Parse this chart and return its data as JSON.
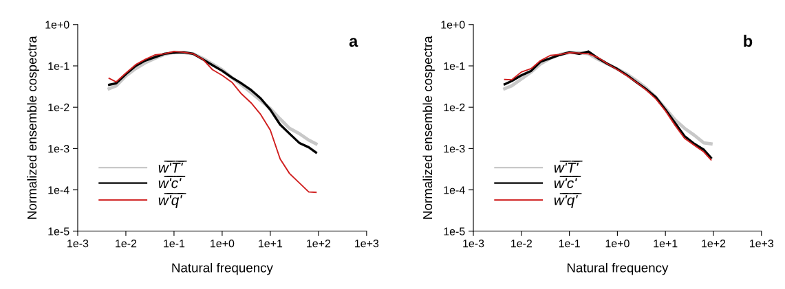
{
  "chart_data": [
    {
      "type": "line",
      "xlabel": "Natural frequency",
      "ylabel": "Normalized ensemble cospectra",
      "annotations": [
        "a"
      ],
      "log": "xy",
      "grid": false,
      "legend": "bottom left",
      "marker": "none",
      "line_style": "solid",
      "xlim": [
        0.001,
        1000
      ],
      "ylim": [
        1e-05,
        1
      ],
      "xticks": [
        {
          "value": 0.001,
          "label": "1e-3"
        },
        {
          "value": 0.01,
          "label": "1e-2"
        },
        {
          "value": 0.1,
          "label": "1e-1"
        },
        {
          "value": 1,
          "label": "1e+0"
        },
        {
          "value": 10,
          "label": "1e+1"
        },
        {
          "value": 100,
          "label": "1e+2"
        },
        {
          "value": 1000,
          "label": "1e+3"
        }
      ],
      "yticks": [
        {
          "value": 1e-05,
          "label": "1e-5"
        },
        {
          "value": 0.0001,
          "label": "1e-4"
        },
        {
          "value": 0.001,
          "label": "1e-3"
        },
        {
          "value": 0.01,
          "label": "1e-2"
        },
        {
          "value": 0.1,
          "label": "1e-1"
        },
        {
          "value": 1,
          "label": "1e+0"
        }
      ],
      "x": [
        0.0045,
        0.0063,
        0.01,
        0.016,
        0.025,
        0.04,
        0.063,
        0.1,
        0.16,
        0.25,
        0.4,
        0.63,
        1,
        1.6,
        2.5,
        4,
        6.3,
        10,
        16,
        25,
        40,
        63,
        89
      ],
      "series": [
        {
          "name": "w̅'̅T̅'̅",
          "color": "#c8c8c8",
          "values": [
            0.028,
            0.033,
            0.057,
            0.086,
            0.118,
            0.152,
            0.189,
            0.214,
            0.209,
            0.196,
            0.152,
            0.111,
            0.081,
            0.052,
            0.035,
            0.0226,
            0.0145,
            0.0093,
            0.0052,
            0.0031,
            0.0023,
            0.0016,
            0.0013
          ]
        },
        {
          "name": "w̅'̅c̅'̅",
          "color": "#000000",
          "values": [
            0.035,
            0.038,
            0.063,
            0.1,
            0.134,
            0.162,
            0.196,
            0.209,
            0.214,
            0.196,
            0.143,
            0.104,
            0.076,
            0.052,
            0.038,
            0.026,
            0.0164,
            0.0087,
            0.0038,
            0.0023,
            0.00137,
            0.00107,
            0.0008
          ]
        },
        {
          "name": "w̅'̅q̅'̅",
          "color": "#d02020",
          "values": [
            0.05,
            0.041,
            0.067,
            0.107,
            0.143,
            0.184,
            0.196,
            0.223,
            0.214,
            0.196,
            0.143,
            0.081,
            0.059,
            0.04,
            0.0212,
            0.0127,
            0.0067,
            0.0028,
            0.00056,
            0.00025,
            0.000148,
            8.9e-05,
            8.7e-05
          ]
        }
      ]
    },
    {
      "type": "line",
      "xlabel": "Natural frequency",
      "ylabel": "Normalized ensemble cospectra",
      "annotations": [
        "b"
      ],
      "log": "xy",
      "grid": false,
      "legend": "bottom left",
      "marker": "none",
      "line_style": "solid",
      "xlim": [
        0.001,
        1000
      ],
      "ylim": [
        1e-05,
        1
      ],
      "xticks": [
        {
          "value": 0.001,
          "label": "1e-3"
        },
        {
          "value": 0.01,
          "label": "1e-2"
        },
        {
          "value": 0.1,
          "label": "1e-1"
        },
        {
          "value": 1,
          "label": "1e+0"
        },
        {
          "value": 10,
          "label": "1e+1"
        },
        {
          "value": 100,
          "label": "1e+2"
        },
        {
          "value": 1000,
          "label": "1e+3"
        }
      ],
      "yticks": [
        {
          "value": 1e-05,
          "label": "1e-5"
        },
        {
          "value": 0.0001,
          "label": "1e-4"
        },
        {
          "value": 0.001,
          "label": "1e-3"
        },
        {
          "value": 0.01,
          "label": "1e-2"
        },
        {
          "value": 0.1,
          "label": "1e-1"
        },
        {
          "value": 1,
          "label": "1e+0"
        }
      ],
      "x": [
        0.0045,
        0.0063,
        0.01,
        0.016,
        0.025,
        0.04,
        0.063,
        0.1,
        0.16,
        0.25,
        0.4,
        0.63,
        1,
        1.6,
        2.5,
        4,
        6.3,
        10,
        16,
        25,
        40,
        63,
        89
      ],
      "series": [
        {
          "name": "w̅'̅T̅'̅",
          "color": "#c8c8c8",
          "values": [
            0.028,
            0.033,
            0.048,
            0.071,
            0.111,
            0.152,
            0.189,
            0.209,
            0.209,
            0.196,
            0.143,
            0.111,
            0.084,
            0.063,
            0.044,
            0.029,
            0.0175,
            0.0093,
            0.0049,
            0.0031,
            0.0021,
            0.00137,
            0.0013
          ]
        },
        {
          "name": "w̅'̅c̅'̅",
          "color": "#000000",
          "values": [
            0.036,
            0.043,
            0.059,
            0.076,
            0.126,
            0.152,
            0.184,
            0.214,
            0.196,
            0.223,
            0.152,
            0.111,
            0.084,
            0.059,
            0.04,
            0.027,
            0.0175,
            0.0087,
            0.0041,
            0.002,
            0.0013,
            0.00094,
            0.0006
          ]
        },
        {
          "name": "w̅'̅q̅'̅",
          "color": "#d02020",
          "values": [
            0.047,
            0.046,
            0.071,
            0.086,
            0.134,
            0.179,
            0.189,
            0.209,
            0.204,
            0.196,
            0.158,
            0.111,
            0.081,
            0.057,
            0.04,
            0.026,
            0.016,
            0.0082,
            0.0036,
            0.00177,
            0.0012,
            0.00083,
            0.00053
          ]
        }
      ]
    }
  ]
}
